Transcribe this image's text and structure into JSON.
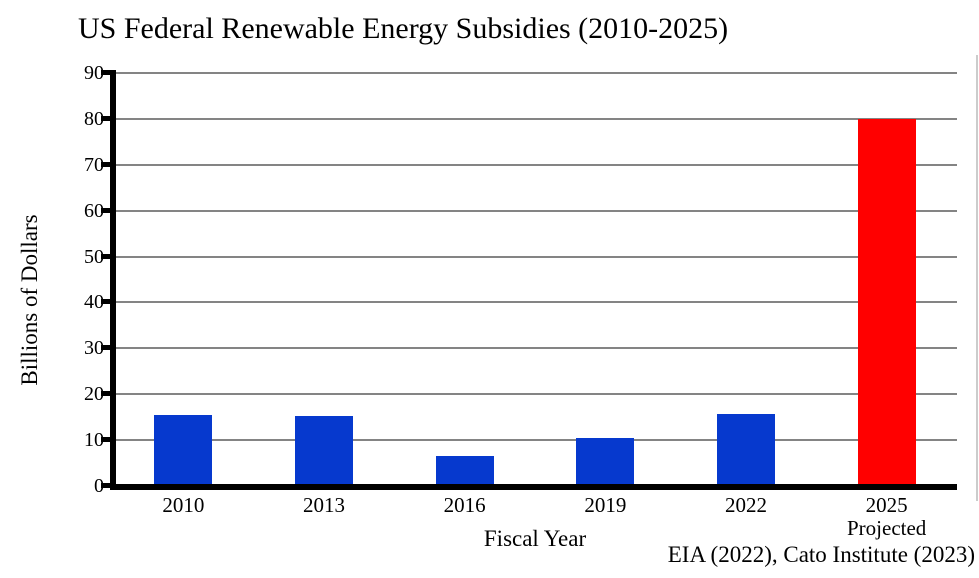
{
  "chart_data": {
    "type": "bar",
    "title": "US Federal Renewable Energy Subsidies (2010-2025)",
    "xlabel": "Fiscal Year",
    "ylabel": "Billions of Dollars",
    "source_note": "EIA (2022), Cato Institute (2023)",
    "categories": [
      {
        "label": "2010",
        "sublabel": ""
      },
      {
        "label": "2013",
        "sublabel": ""
      },
      {
        "label": "2016",
        "sublabel": ""
      },
      {
        "label": "2019",
        "sublabel": ""
      },
      {
        "label": "2022",
        "sublabel": ""
      },
      {
        "label": "2025",
        "sublabel": "Projected"
      }
    ],
    "values": [
      15.5,
      15.3,
      6.6,
      10.5,
      15.6,
      80
    ],
    "bar_colors": [
      "#0639CE",
      "#0639CE",
      "#0639CE",
      "#0639CE",
      "#0639CE",
      "#FF0000"
    ],
    "ylim": [
      0,
      90
    ],
    "yticks": [
      0,
      10,
      20,
      30,
      40,
      50,
      60,
      70,
      80,
      90
    ],
    "grid": true,
    "legend": "none",
    "colors": {
      "bar_blue": "#0639CE",
      "bar_red": "#FF0000",
      "gridline": "#848484",
      "axis": "#000000",
      "text": "#000000",
      "window_edge": "#cccccc"
    }
  }
}
